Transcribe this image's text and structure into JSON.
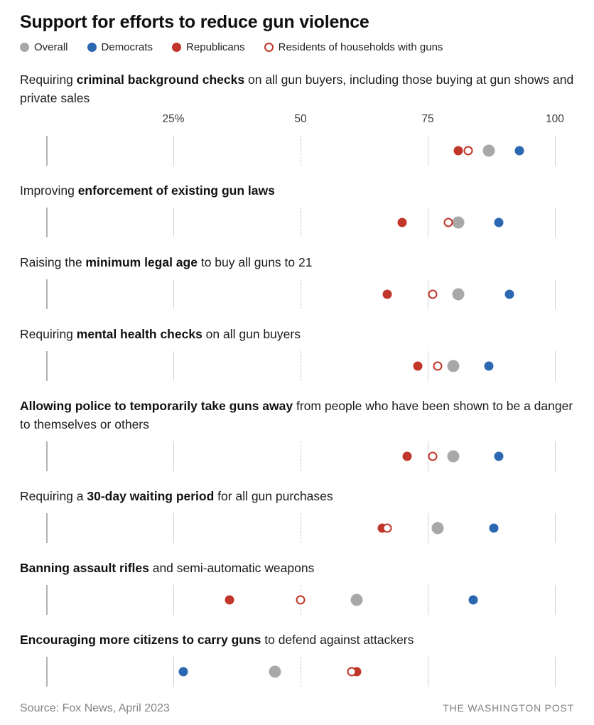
{
  "title": "Support for efforts to reduce gun violence",
  "colors": {
    "overall": "#a8a8a8",
    "democrats": "#2c67b1",
    "republicans": "#c1362a",
    "households_outline": "#c1362a",
    "tick": "#d2d2d2",
    "tick_zero": "#b3b3b3",
    "label_text": "#1c1c1c",
    "muted_text": "#848484"
  },
  "legend": [
    {
      "key": "overall",
      "label": "Overall",
      "type": "filled"
    },
    {
      "key": "democrats",
      "label": "Democrats",
      "type": "filled"
    },
    {
      "key": "republicans",
      "label": "Republicans",
      "type": "filled"
    },
    {
      "key": "households",
      "label": "Residents of households with guns",
      "type": "open"
    }
  ],
  "axis": {
    "min": 0,
    "max": 100,
    "ticks": [
      {
        "value": 0,
        "label": "",
        "style": "zero"
      },
      {
        "value": 25,
        "label": "25%",
        "style": "solid"
      },
      {
        "value": 50,
        "label": "50",
        "style": "dashed"
      },
      {
        "value": 75,
        "label": "75",
        "style": "solid"
      },
      {
        "value": 100,
        "label": "100",
        "style": "solid"
      }
    ]
  },
  "rows": [
    {
      "label_parts": [
        {
          "text": "Requiring ",
          "bold": false
        },
        {
          "text": "criminal background checks",
          "bold": true
        },
        {
          "text": " on all gun buyers, including those buying at gun shows and private sales",
          "bold": false
        }
      ],
      "values": {
        "overall": 87,
        "democrats": 93,
        "republicans": 81,
        "households": 83
      }
    },
    {
      "label_parts": [
        {
          "text": "Improving ",
          "bold": false
        },
        {
          "text": "enforcement of existing gun laws",
          "bold": true
        }
      ],
      "values": {
        "overall": 81,
        "democrats": 89,
        "republicans": 70,
        "households": 79
      }
    },
    {
      "label_parts": [
        {
          "text": "Raising the ",
          "bold": false
        },
        {
          "text": "minimum legal age",
          "bold": true
        },
        {
          "text": " to buy all guns to 21",
          "bold": false
        }
      ],
      "values": {
        "overall": 81,
        "democrats": 91,
        "republicans": 67,
        "households": 76
      }
    },
    {
      "label_parts": [
        {
          "text": "Requiring ",
          "bold": false
        },
        {
          "text": "mental health checks",
          "bold": true
        },
        {
          "text": " on all gun buyers",
          "bold": false
        }
      ],
      "values": {
        "overall": 80,
        "democrats": 87,
        "republicans": 73,
        "households": 77
      }
    },
    {
      "label_parts": [
        {
          "text": "Allowing police to temporarily take guns away",
          "bold": true
        },
        {
          "text": " from people who have been shown to be a danger to themselves or others",
          "bold": false
        }
      ],
      "values": {
        "overall": 80,
        "democrats": 89,
        "republicans": 71,
        "households": 76
      }
    },
    {
      "label_parts": [
        {
          "text": "Requiring a ",
          "bold": false
        },
        {
          "text": "30-day waiting period",
          "bold": true
        },
        {
          "text": " for all gun purchases",
          "bold": false
        }
      ],
      "values": {
        "overall": 77,
        "democrats": 88,
        "republicans": 66,
        "households": 67
      }
    },
    {
      "label_parts": [
        {
          "text": "Banning assault rifles",
          "bold": true
        },
        {
          "text": " and semi-automatic weapons",
          "bold": false
        }
      ],
      "values": {
        "overall": 61,
        "democrats": 84,
        "republicans": 36,
        "households": 50
      }
    },
    {
      "label_parts": [
        {
          "text": "Encouraging more citizens to carry guns",
          "bold": true
        },
        {
          "text": " to defend against attackers",
          "bold": false
        }
      ],
      "values": {
        "overall": 45,
        "democrats": 27,
        "republicans": 61,
        "households": 60
      }
    }
  ],
  "footer": {
    "source": "Source: Fox News, April 2023",
    "credit": "THE WASHINGTON POST"
  },
  "chart_data": {
    "type": "scatter",
    "subtype": "dot-plot",
    "title": "Support for efforts to reduce gun violence",
    "xlim": [
      0,
      100
    ],
    "x_ticks": [
      25,
      50,
      75,
      100
    ],
    "x_tick_labels": [
      "25%",
      "50",
      "75",
      "100"
    ],
    "grid": "vertical-per-row",
    "legend_position": "top",
    "series_names": [
      "Overall",
      "Democrats",
      "Republicans",
      "Residents of households with guns"
    ],
    "categories": [
      "Requiring criminal background checks on all gun buyers, including those buying at gun shows and private sales",
      "Improving enforcement of existing gun laws",
      "Raising the minimum legal age to buy all guns to 21",
      "Requiring mental health checks on all gun buyers",
      "Allowing police to temporarily take guns away from people who have been shown to be a danger to themselves or others",
      "Requiring a 30-day waiting period for all gun purchases",
      "Banning assault rifles and semi-automatic weapons",
      "Encouraging more citizens to carry guns to defend against attackers"
    ],
    "series": [
      {
        "name": "Overall",
        "values": [
          87,
          81,
          81,
          80,
          80,
          77,
          61,
          45
        ]
      },
      {
        "name": "Democrats",
        "values": [
          93,
          89,
          91,
          87,
          89,
          88,
          84,
          27
        ]
      },
      {
        "name": "Republicans",
        "values": [
          81,
          70,
          67,
          73,
          71,
          66,
          36,
          61
        ]
      },
      {
        "name": "Residents of households with guns",
        "values": [
          83,
          79,
          76,
          77,
          76,
          67,
          50,
          60
        ]
      }
    ]
  }
}
